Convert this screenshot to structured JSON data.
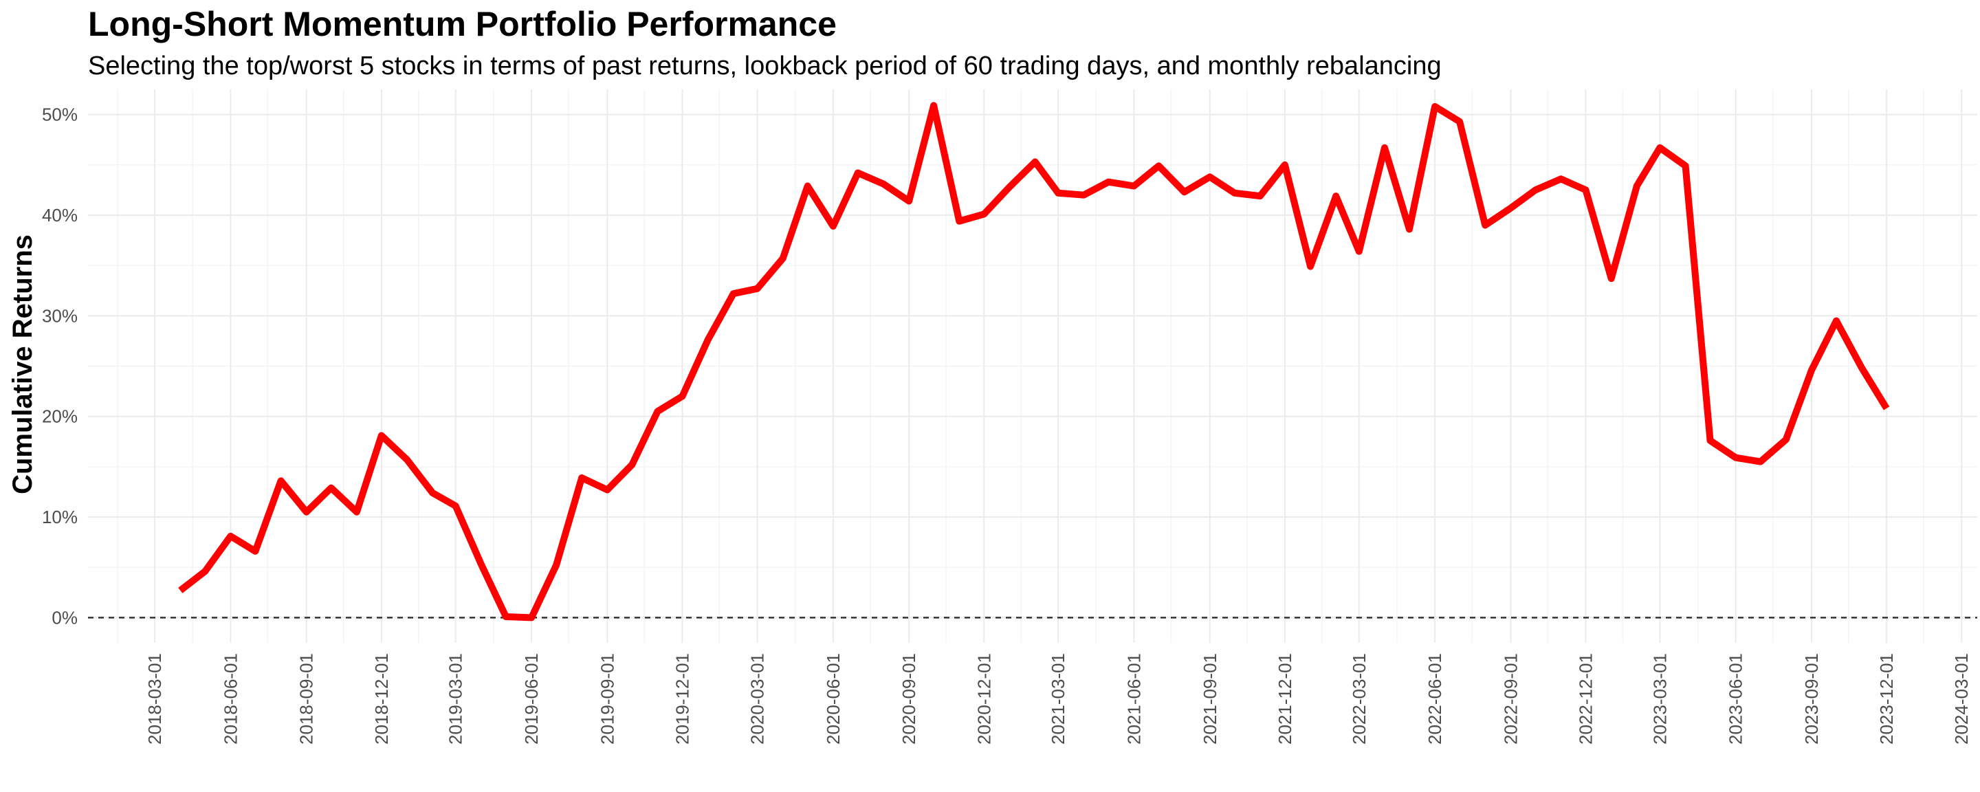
{
  "chart_data": {
    "type": "line",
    "title": "Long-Short Momentum Portfolio Performance",
    "subtitle": "Selecting the top/worst 5 stocks in terms of past returns, lookback period of 60 trading days, and monthly rebalancing",
    "xlabel": "",
    "ylabel": "Cumulative Returns",
    "y_unit": "percent",
    "ylim": [
      -2.5,
      52.5
    ],
    "y_ticks": [
      0,
      10,
      20,
      30,
      40,
      50
    ],
    "y_tick_labels": [
      "0%",
      "10%",
      "20%",
      "30%",
      "40%",
      "50%"
    ],
    "x_range": [
      "2017-12-10",
      "2024-03-20"
    ],
    "x_ticks": [
      "2018-03-01",
      "2018-06-01",
      "2018-09-01",
      "2018-12-01",
      "2019-03-01",
      "2019-06-01",
      "2019-09-01",
      "2019-12-01",
      "2020-03-01",
      "2020-06-01",
      "2020-09-01",
      "2020-12-01",
      "2021-03-01",
      "2021-06-01",
      "2021-09-01",
      "2021-12-01",
      "2022-03-01",
      "2022-06-01",
      "2022-09-01",
      "2022-12-01",
      "2023-03-01",
      "2023-06-01",
      "2023-09-01",
      "2023-12-01",
      "2024-03-01"
    ],
    "x_minor_ticks": [
      "2018-01-15",
      "2018-04-16",
      "2018-07-16",
      "2018-10-16",
      "2019-01-15",
      "2019-04-16",
      "2019-07-16",
      "2019-10-16",
      "2020-01-15",
      "2020-04-16",
      "2020-07-16",
      "2020-10-16",
      "2021-01-15",
      "2021-04-16",
      "2021-07-16",
      "2021-10-16",
      "2022-01-15",
      "2022-04-16",
      "2022-07-16",
      "2022-10-16",
      "2023-01-15",
      "2023-04-16",
      "2023-07-16",
      "2023-10-16",
      "2024-01-15"
    ],
    "grid": true,
    "reference_line": {
      "y": 0,
      "style": "dashed",
      "color": "#333333"
    },
    "series": [
      {
        "color": "#ff0000",
        "x": [
          "2018-04-01",
          "2018-05-01",
          "2018-06-01",
          "2018-07-01",
          "2018-08-01",
          "2018-09-01",
          "2018-10-01",
          "2018-11-01",
          "2018-12-01",
          "2019-01-01",
          "2019-02-01",
          "2019-03-01",
          "2019-04-01",
          "2019-05-01",
          "2019-06-01",
          "2019-07-01",
          "2019-08-01",
          "2019-09-01",
          "2019-10-01",
          "2019-11-01",
          "2019-12-01",
          "2020-01-01",
          "2020-02-01",
          "2020-03-01",
          "2020-04-01",
          "2020-05-01",
          "2020-06-01",
          "2020-07-01",
          "2020-08-01",
          "2020-09-01",
          "2020-10-01",
          "2020-11-01",
          "2020-12-01",
          "2021-01-01",
          "2021-02-01",
          "2021-03-01",
          "2021-04-01",
          "2021-05-01",
          "2021-06-01",
          "2021-07-01",
          "2021-08-01",
          "2021-09-01",
          "2021-10-01",
          "2021-11-01",
          "2021-12-01",
          "2022-01-01",
          "2022-02-01",
          "2022-03-01",
          "2022-04-01",
          "2022-05-01",
          "2022-06-01",
          "2022-07-01",
          "2022-08-01",
          "2022-09-01",
          "2022-10-01",
          "2022-11-01",
          "2022-12-01",
          "2023-01-01",
          "2023-02-01",
          "2023-03-01",
          "2023-04-01",
          "2023-05-01",
          "2023-06-01",
          "2023-07-01",
          "2023-08-01",
          "2023-09-01",
          "2023-10-01",
          "2023-11-01",
          "2023-12-01"
        ],
        "values": [
          2.7,
          4.6,
          8.1,
          6.6,
          13.6,
          10.5,
          12.9,
          10.5,
          18.1,
          15.7,
          12.4,
          11.1,
          5.3,
          0.1,
          0.0,
          5.2,
          13.9,
          12.7,
          15.2,
          20.5,
          22.0,
          27.6,
          32.2,
          32.7,
          35.7,
          42.9,
          38.9,
          44.2,
          43.1,
          41.4,
          50.9,
          39.4,
          40.1,
          42.8,
          45.3,
          42.2,
          42.0,
          43.3,
          42.9,
          44.9,
          42.3,
          43.8,
          42.2,
          41.9,
          45.0,
          34.9,
          41.9,
          36.4,
          46.7,
          38.6,
          50.8,
          49.3,
          39.0,
          40.7,
          42.5,
          43.6,
          42.5,
          33.7,
          42.9,
          46.7,
          44.9,
          17.6,
          15.9,
          15.5,
          17.7,
          24.6,
          29.5,
          24.8,
          20.8
        ]
      }
    ]
  }
}
